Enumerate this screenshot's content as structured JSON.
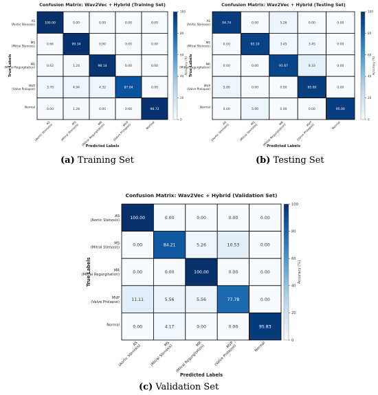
{
  "labels": {
    "categories": [
      "AS\n(Aortic Stenosis)",
      "MS\n(Mitral Stenosis)",
      "MR\n(Mitral Regurgitation)",
      "MVP\n(Valve Prolapse)",
      "Normal"
    ],
    "xlabel": "Predicted Labels",
    "ylabel": "True Labels",
    "colorbar_label": "Accuracy (%)",
    "colorbar_ticks": [
      0,
      20,
      40,
      60,
      80,
      100
    ]
  },
  "captions": [
    {
      "letter": "(a)",
      "text": "Training Set"
    },
    {
      "letter": "(b)",
      "text": "Testing Set"
    },
    {
      "letter": "(c)",
      "text": "Validation Set"
    }
  ],
  "colors": {
    "low": "#f7fbff",
    "high": "#08306b"
  },
  "chart_data": [
    {
      "type": "heatmap",
      "title": "Confusion Matrix: Wav2Vec + Hybrid (Training Set)",
      "xlabel": "Predicted Labels",
      "ylabel": "True Labels",
      "colorbar_label": "Accuracy (%)",
      "range": [
        0,
        100
      ],
      "rows": [
        "AS (Aortic Stenosis)",
        "MS (Mitral Stenosis)",
        "MR (Mitral Regurgitation)",
        "MVP (Valve Prolapse)",
        "Normal"
      ],
      "cols": [
        "AS (Aortic Stenosis)",
        "MS (Mitral Stenosis)",
        "MR (Mitral Regurgitation)",
        "MVP (Valve Prolapse)",
        "Normal"
      ],
      "values": [
        [
          100.0,
          0.0,
          0.0,
          0.0,
          0.0
        ],
        [
          0.66,
          99.34,
          0.0,
          0.0,
          0.0
        ],
        [
          0.62,
          1.24,
          98.14,
          0.0,
          0.0
        ],
        [
          3.7,
          4.94,
          4.32,
          87.04,
          0.0
        ],
        [
          0.0,
          1.28,
          0.0,
          0.0,
          98.72
        ]
      ]
    },
    {
      "type": "heatmap",
      "title": "Confusion Matrix: Wav2Vec + Hybrid (Testing Set)",
      "xlabel": "Predicted Labels",
      "ylabel": "True Labels",
      "colorbar_label": "Accuracy (%)",
      "range": [
        0,
        100
      ],
      "rows": [
        "AS (Aortic Stenosis)",
        "MS (Mitral Stenosis)",
        "MR (Mitral Regurgitation)",
        "MVP (Valve Prolapse)",
        "Normal"
      ],
      "cols": [
        "AS (Aortic Stenosis)",
        "MS (Mitral Stenosis)",
        "MR (Mitral Regurgitation)",
        "MVP (Valve Prolapse)",
        "Normal"
      ],
      "values": [
        [
          94.74,
          0.0,
          5.26,
          0.0,
          0.0
        ],
        [
          0.0,
          93.1,
          3.45,
          3.45,
          0.0
        ],
        [
          0.0,
          0.0,
          91.67,
          8.33,
          0.0
        ],
        [
          5.0,
          0.0,
          0.0,
          95.0,
          0.0
        ],
        [
          0.0,
          5.0,
          0.0,
          0.0,
          95.0
        ]
      ]
    },
    {
      "type": "heatmap",
      "title": "Confusion Matrix: Wav2Vec + Hybrid (Validation Set)",
      "xlabel": "Predicted Labels",
      "ylabel": "True Labels",
      "colorbar_label": "Accuracy (%)",
      "range": [
        0,
        100
      ],
      "rows": [
        "AS (Aortic Stenosis)",
        "MS (Mitral Stenosis)",
        "MR (Mitral Regurgitation)",
        "MVP (Valve Prolapse)",
        "Normal"
      ],
      "cols": [
        "AS (Aortic Stenosis)",
        "MS (Mitral Stenosis)",
        "MR (Mitral Regurgitation)",
        "MVP (Valve Prolapse)",
        "Normal"
      ],
      "values": [
        [
          100.0,
          0.0,
          0.0,
          0.0,
          0.0
        ],
        [
          0.0,
          84.21,
          5.26,
          10.53,
          0.0
        ],
        [
          0.0,
          0.0,
          100.0,
          0.0,
          0.0
        ],
        [
          11.11,
          5.56,
          5.56,
          77.78,
          0.0
        ],
        [
          0.0,
          4.17,
          0.0,
          0.0,
          95.83
        ]
      ]
    }
  ]
}
